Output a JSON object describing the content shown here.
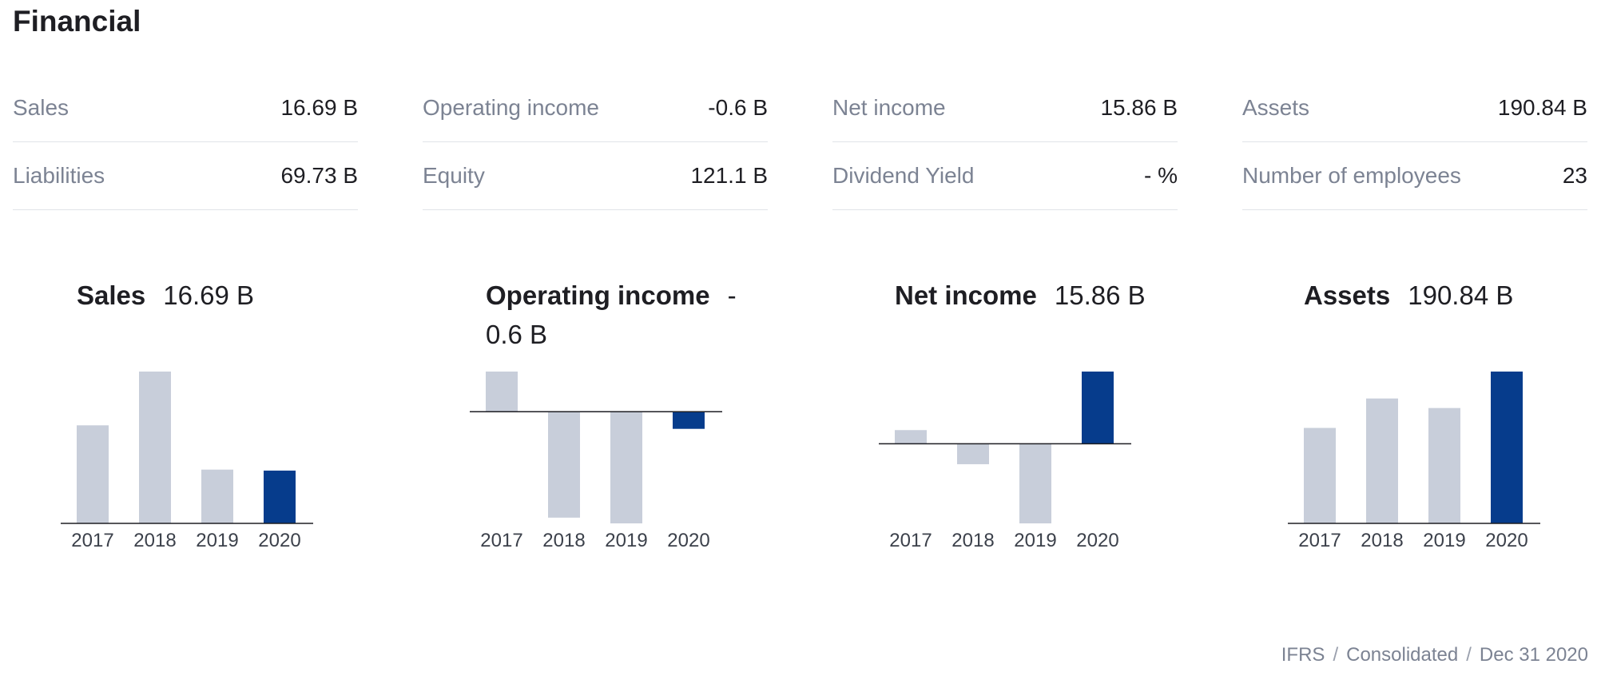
{
  "page": {
    "title": "Financial"
  },
  "metrics": [
    [
      {
        "label": "Sales",
        "value": "16.69 B"
      },
      {
        "label": "Liabilities",
        "value": "69.73 B"
      }
    ],
    [
      {
        "label": "Operating income",
        "value": "-0.6 B"
      },
      {
        "label": "Equity",
        "value": "121.1 B"
      }
    ],
    [
      {
        "label": "Net income",
        "value": "15.86 B"
      },
      {
        "label": "Dividend Yield",
        "value": "- %"
      }
    ],
    [
      {
        "label": "Assets",
        "value": "190.84 B"
      },
      {
        "label": "Number of employees",
        "value": "23"
      }
    ]
  ],
  "charts": [
    {
      "label": "Sales",
      "value": "16.69 B"
    },
    {
      "label": "Operating income",
      "value": "-0.6 B"
    },
    {
      "label": "Net income",
      "value": "15.86 B"
    },
    {
      "label": "Assets",
      "value": "190.84 B"
    }
  ],
  "colors": {
    "past_bar": "#c8ceda",
    "current_bar": "#063c8c",
    "axis": "#1e1e23"
  },
  "chart_data": [
    {
      "type": "bar",
      "title": "Sales",
      "categories": [
        "2017",
        "2018",
        "2019",
        "2020"
      ],
      "values": [
        31.0,
        48.0,
        17.0,
        16.69
      ],
      "highlight_index": 3
    },
    {
      "type": "bar",
      "title": "Operating income",
      "categories": [
        "2017",
        "2018",
        "2019",
        "2020"
      ],
      "values": [
        1.4,
        -3.7,
        -3.9,
        -0.6
      ],
      "highlight_index": 3
    },
    {
      "type": "bar",
      "title": "Net income",
      "categories": [
        "2017",
        "2018",
        "2019",
        "2020"
      ],
      "values": [
        3.0,
        -4.5,
        -17.5,
        15.86
      ],
      "highlight_index": 3
    },
    {
      "type": "bar",
      "title": "Assets",
      "categories": [
        "2017",
        "2018",
        "2019",
        "2020"
      ],
      "values": [
        120.0,
        157.0,
        145.0,
        190.84
      ],
      "highlight_index": 3
    }
  ],
  "footer": {
    "standard": "IFRS",
    "scope": "Consolidated",
    "date": "Dec 31 2020"
  }
}
